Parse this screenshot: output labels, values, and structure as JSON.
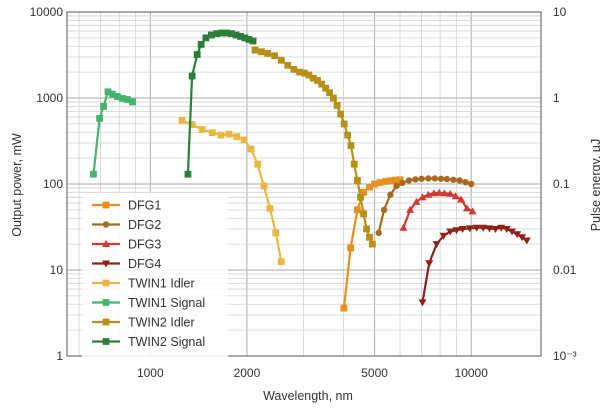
{
  "chart_data": {
    "type": "line",
    "xlabel": "Wavelength, nm",
    "ylabel": "Output power, mW",
    "y2label": "Pulse energy, µJ",
    "x_scale": "log",
    "y_scale": "log",
    "xlim": [
      550,
      16500
    ],
    "ylim": [
      1,
      10000
    ],
    "y2lim": [
      0.001,
      10
    ],
    "grid": true,
    "legend_position": "lower-left",
    "x_ticks": [
      "1000",
      "2000",
      "5000",
      "10000"
    ],
    "y_ticks": [
      "1",
      "10",
      "100",
      "1000",
      "10000"
    ],
    "y2_ticks": [
      "10⁻³",
      "0.01",
      "0.1",
      "1",
      "10"
    ],
    "series": [
      {
        "name": "DFG1",
        "color": "#e8901e",
        "marker": "square",
        "x": [
          4010,
          4210,
          4420,
          4620,
          4820,
          5000,
          5200,
          5420,
          5600,
          5800,
          6000
        ],
        "y": [
          3.6,
          18,
          50,
          80,
          92,
          100,
          104,
          107,
          109,
          111,
          112
        ]
      },
      {
        "name": "DFG2",
        "color": "#a9691f",
        "marker": "circle",
        "x": [
          5150,
          5350,
          5600,
          5850,
          6100,
          6400,
          6700,
          7000,
          7350,
          7700,
          8050,
          8400,
          8800,
          9200,
          9600,
          10000
        ],
        "y": [
          27,
          50,
          75,
          95,
          103,
          110,
          113,
          115,
          116,
          116,
          115,
          114,
          112,
          110,
          105,
          100
        ]
      },
      {
        "name": "DFG3",
        "color": "#d13a32",
        "marker": "triangle-up",
        "x": [
          6150,
          6450,
          6750,
          7050,
          7350,
          7650,
          7950,
          8250,
          8600,
          8950,
          9300,
          9700,
          10100
        ],
        "y": [
          31,
          50,
          62,
          70,
          75,
          78,
          79,
          78,
          77,
          72,
          66,
          52,
          48
        ]
      },
      {
        "name": "DFG4",
        "color": "#8c2218",
        "marker": "triangle-down",
        "x": [
          7050,
          7400,
          7800,
          8200,
          8600,
          9000,
          9400,
          9900,
          10400,
          10900,
          11400,
          11900,
          12400,
          12900,
          13400,
          13900,
          14400,
          14900
        ],
        "y": [
          4.2,
          12,
          20,
          25,
          28,
          29,
          30,
          30.5,
          31,
          31,
          30.5,
          30,
          31,
          30,
          28,
          26,
          24,
          22
        ]
      },
      {
        "name": "TWIN1 Idler",
        "color": "#e8b845",
        "marker": "square",
        "x": [
          1255,
          1350,
          1450,
          1560,
          1660,
          1760,
          1860,
          1960,
          2060,
          2160,
          2260,
          2360,
          2460,
          2560
        ],
        "y": [
          550,
          490,
          430,
          395,
          370,
          380,
          355,
          325,
          255,
          170,
          95,
          52,
          27,
          12.5
        ]
      },
      {
        "name": "TWIN1 Signal",
        "color": "#46b46e",
        "marker": "square",
        "x": [
          665,
          695,
          715,
          738,
          762,
          790,
          818,
          848,
          880
        ],
        "y": [
          130,
          580,
          800,
          1180,
          1110,
          1040,
          990,
          960,
          900
        ]
      },
      {
        "name": "TWIN2 Idler",
        "color": "#b89016",
        "marker": "square",
        "x": [
          2120,
          2220,
          2320,
          2440,
          2560,
          2680,
          2800,
          2920,
          3020,
          3120,
          3220,
          3320,
          3420,
          3520,
          3620,
          3720,
          3820,
          3920,
          4020,
          4120,
          4220,
          4320,
          4420,
          4520,
          4620,
          4720,
          4820,
          4920
        ],
        "y": [
          3600,
          3450,
          3300,
          3100,
          2750,
          2400,
          2150,
          2000,
          1950,
          1850,
          1700,
          1600,
          1450,
          1300,
          1150,
          1000,
          820,
          650,
          500,
          370,
          280,
          170,
          110,
          70,
          45,
          30,
          24,
          20
        ]
      },
      {
        "name": "TWIN2 Signal",
        "color": "#2b7d3a",
        "marker": "square",
        "x": [
          1310,
          1350,
          1400,
          1440,
          1490,
          1550,
          1610,
          1670,
          1730,
          1790,
          1850,
          1910,
          1970,
          2030,
          2090
        ],
        "y": [
          130,
          1800,
          3200,
          4200,
          5000,
          5400,
          5600,
          5700,
          5700,
          5600,
          5400,
          5200,
          5000,
          4800,
          4600
        ]
      }
    ]
  }
}
